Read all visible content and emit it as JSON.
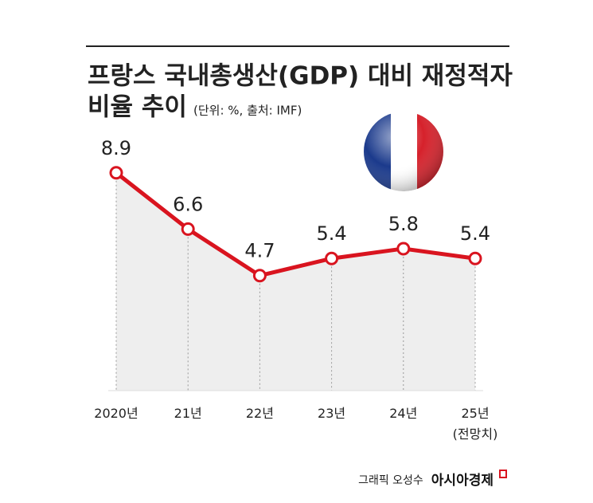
{
  "chart_data": {
    "type": "line",
    "title": [
      "프랑스 국내총생산(GDP) 대비 재정적자",
      "비율 추이"
    ],
    "subtitle": "(단위: %, 출처: IMF)",
    "categories": [
      "2020년",
      "21년",
      "22년",
      "23년",
      "24년",
      "25년 (전망치)"
    ],
    "series": [
      {
        "color": "#d9141f",
        "values": [
          8.9,
          6.6,
          4.7,
          5.4,
          5.8,
          5.4
        ]
      }
    ],
    "credit": "그래픽 오성수",
    "brand": "아시아경제"
  }
}
